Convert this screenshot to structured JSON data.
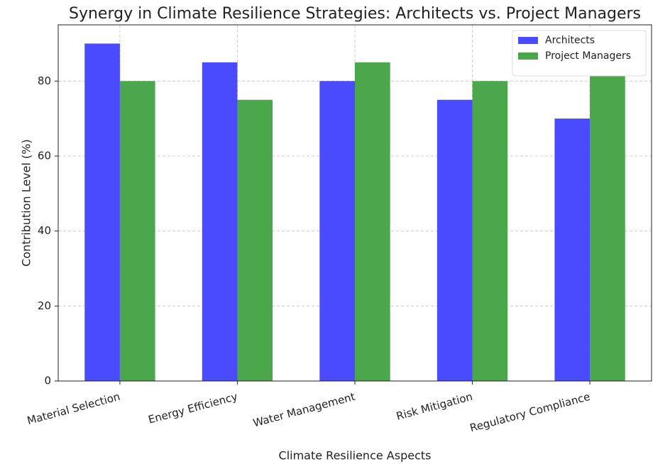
{
  "chart_data": {
    "type": "bar",
    "title": "Synergy in Climate Resilience Strategies: Architects vs. Project Managers",
    "xlabel": "Climate Resilience Aspects",
    "ylabel": "Contribution Level (%)",
    "categories": [
      "Material Selection",
      "Energy Efficiency",
      "Water Management",
      "Risk Mitigation",
      "Regulatory Compliance"
    ],
    "series": [
      {
        "name": "Architects",
        "color": "#4a4aff",
        "values": [
          90,
          85,
          80,
          75,
          70
        ]
      },
      {
        "name": "Project Managers",
        "color": "#4ca64c",
        "values": [
          80,
          75,
          85,
          80,
          85
        ]
      }
    ],
    "ylim": [
      0,
      95
    ],
    "yticks": [
      0,
      20,
      40,
      60,
      80
    ],
    "grid": true,
    "legend": "upper right"
  }
}
